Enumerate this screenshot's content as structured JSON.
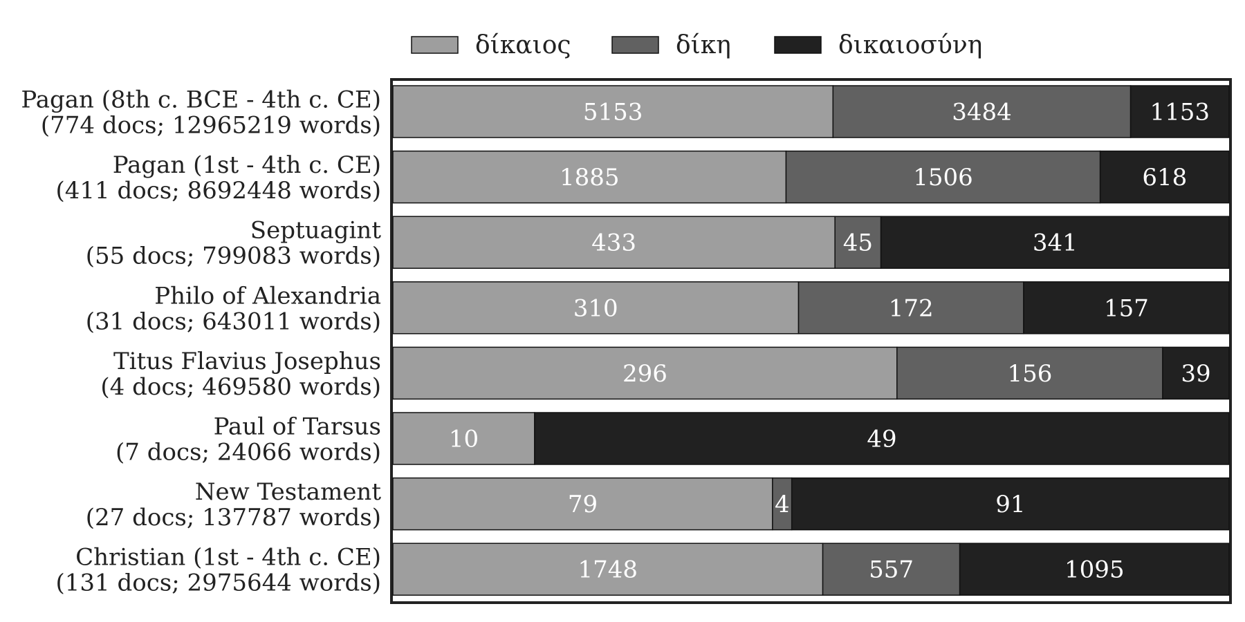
{
  "chart_data": {
    "type": "bar",
    "orientation": "horizontal",
    "stacked": true,
    "normalized": true,
    "categories": [
      [
        "Pagan (8th c. BCE - 4th c. CE)",
        "(774 docs; 12965219 words)"
      ],
      [
        "Pagan (1st - 4th c. CE)",
        "(411 docs; 8692448 words)"
      ],
      [
        "Septuagint",
        "(55 docs; 799083 words)"
      ],
      [
        "Philo of Alexandria",
        "(31 docs; 643011 words)"
      ],
      [
        "Titus Flavius Josephus",
        "(4 docs; 469580 words)"
      ],
      [
        "Paul of Tarsus",
        "(7 docs; 24066 words)"
      ],
      [
        "New Testament",
        "(27 docs; 137787 words)"
      ],
      [
        "Christian (1st - 4th c. CE)",
        "(131 docs; 2975644 words)"
      ]
    ],
    "series": [
      {
        "name": "δίκαιος",
        "color": "#9e9e9e",
        "values": [
          5153,
          1885,
          433,
          310,
          296,
          10,
          79,
          1748
        ]
      },
      {
        "name": "δίκη",
        "color": "#616161",
        "values": [
          3484,
          1506,
          45,
          172,
          156,
          0,
          4,
          557
        ]
      },
      {
        "name": "δικαιοσύνη",
        "color": "#212121",
        "values": [
          1153,
          618,
          341,
          157,
          39,
          49,
          91,
          1095
        ]
      }
    ],
    "legend_position": "top",
    "grid": false,
    "data_labels": true,
    "colors": {
      "frame": "#222222",
      "label_text": "#ffffff",
      "axis_text": "#222222"
    }
  }
}
